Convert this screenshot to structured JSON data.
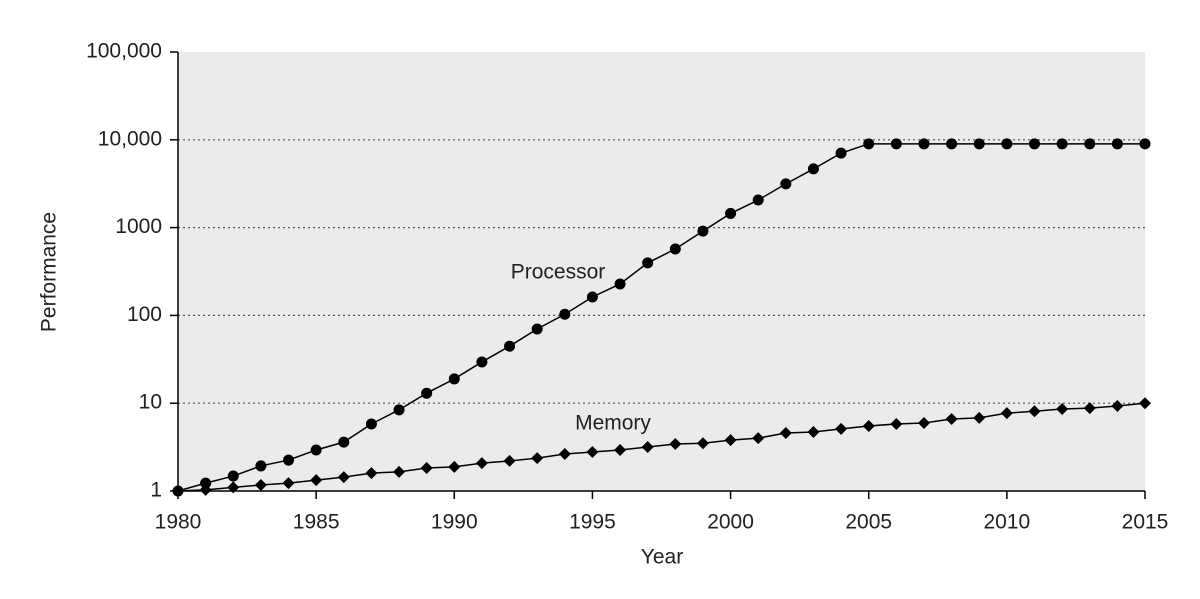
{
  "chart_data": {
    "type": "line",
    "x_label": "Year",
    "y_label": "Performance",
    "x": [
      1980,
      1981,
      1982,
      1983,
      1984,
      1985,
      1986,
      1987,
      1988,
      1989,
      1990,
      1991,
      1992,
      1993,
      1994,
      1995,
      1996,
      1997,
      1998,
      1999,
      2000,
      2001,
      2002,
      2003,
      2004,
      2005,
      2006,
      2007,
      2008,
      2009,
      2010,
      2011,
      2012,
      2013,
      2014,
      2015
    ],
    "series": [
      {
        "name": "Processor",
        "color": "#000000",
        "marker": "circle",
        "values": [
          1,
          1.23,
          1.48,
          1.93,
          2.25,
          2.93,
          3.6,
          5.8,
          8.4,
          13,
          18.9,
          29.5,
          44.6,
          70,
          103,
          162,
          228,
          396,
          570,
          912,
          1450,
          2060,
          3150,
          4660,
          7050,
          9000,
          9000,
          9000,
          9000,
          9000,
          9000,
          9000,
          9000,
          9000,
          9000,
          9000
        ]
      },
      {
        "name": "Memory",
        "color": "#000000",
        "marker": "diamond",
        "values": [
          1,
          1.03,
          1.1,
          1.17,
          1.23,
          1.33,
          1.44,
          1.6,
          1.65,
          1.83,
          1.88,
          2.08,
          2.2,
          2.37,
          2.64,
          2.78,
          2.93,
          3.17,
          3.43,
          3.5,
          3.8,
          4.0,
          4.57,
          4.7,
          5.1,
          5.5,
          5.8,
          5.95,
          6.6,
          6.8,
          7.7,
          8.1,
          8.6,
          8.8,
          9.3,
          10
        ]
      }
    ],
    "xlim": [
      1980,
      2015
    ],
    "xticks": [
      1980,
      1985,
      1990,
      1995,
      2000,
      2005,
      2010,
      2015
    ],
    "ylim": [
      1,
      100000
    ],
    "ylog": true,
    "yticks": [
      1,
      10,
      100,
      1000,
      {
        "value": 10000,
        "label": "10,000"
      },
      {
        "value": 100000,
        "label": "100,000"
      }
    ],
    "grid": true,
    "plot_background": "#ebebeb"
  }
}
